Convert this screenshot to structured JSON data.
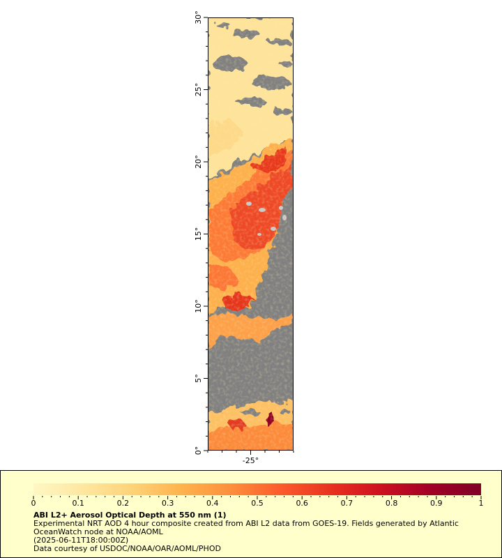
{
  "map": {
    "lat_ticks": [
      "0°",
      "5°",
      "10°",
      "15°",
      "20°",
      "25°",
      "30°"
    ],
    "lat_tick_values": [
      0,
      5,
      10,
      15,
      20,
      25,
      30
    ],
    "lon_ticks": [
      "-25°"
    ],
    "lon_tick_values": [
      -25
    ],
    "lat_range": [
      0,
      30
    ],
    "lon_range": [
      -28,
      -22
    ],
    "colors": {
      "no_data": "#808080",
      "land": "#c8c8c8",
      "low_aod": "#fde08a",
      "mid_aod": "#fb8a3c",
      "high_aod": "#e8311f",
      "max_aod": "#7f0020"
    }
  },
  "colorbar": {
    "min": 0,
    "max": 1,
    "tick_labels": [
      "0",
      "0.1",
      "0.2",
      "0.3",
      "0.4",
      "0.5",
      "0.6",
      "0.7",
      "0.8",
      "0.9",
      "1"
    ],
    "stops": [
      "#fff7c4",
      "#fee7a0",
      "#fed277",
      "#feb24c",
      "#fd8d3c",
      "#fc5a2c",
      "#e8311f",
      "#cc1020",
      "#a10026",
      "#800026"
    ]
  },
  "caption": {
    "title": "ABI L2+ Aerosol Optical Depth at 550 nm (1)",
    "description": "Experimental NRT AOD 4 hour composite created from ABI L2 data from GOES-19. Fields generated by Atlantic OceanWatch node at NOAA/AOML",
    "timestamp": "(2025-06-11T18:00:00Z)",
    "credit": "Data courtesy of USDOC/NOAA/OAR/AOML/PHOD"
  }
}
